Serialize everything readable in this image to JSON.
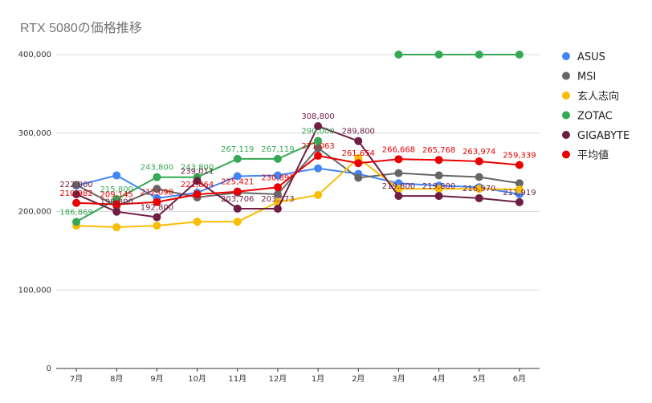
{
  "chart_data": {
    "type": "line",
    "title": "RTX 5080の価格推移",
    "categories": [
      "7月",
      "8月",
      "9月",
      "10月",
      "11月",
      "12月",
      "1月",
      "2月",
      "3月",
      "4月",
      "5月",
      "6月"
    ],
    "yticks": [
      "0",
      "100,000",
      "200,000",
      "300,000",
      "400,000"
    ],
    "ylim": [
      0,
      400000
    ],
    "grid": true,
    "legend_position": "right",
    "series": [
      {
        "name": "ASUS",
        "color": "#4285f4",
        "values": [
          233000,
          246000,
          217000,
          224000,
          245000,
          246000,
          255000,
          248000,
          236000,
          233000,
          231000,
          222000
        ],
        "labels": []
      },
      {
        "name": "MSI",
        "color": "#666666",
        "values": [
          234000,
          207000,
          229000,
          218000,
          224000,
          222000,
          281000,
          243000,
          249000,
          246000,
          244000,
          236000
        ],
        "labels": []
      },
      {
        "name": "玄人志向",
        "color": "#fbbc04",
        "values": [
          182000,
          180000,
          182000,
          187000,
          187000,
          212000,
          221000,
          268000,
          229000,
          229000,
          229000,
          228000
        ],
        "labels": []
      },
      {
        "name": "ZOTAC",
        "color": "#34a853",
        "values": [
          186869,
          215800,
          243800,
          243800,
          267119,
          267119,
          290000,
          null,
          400000,
          400000,
          400000,
          400000
        ],
        "labels": [
          "186,869",
          "215,800",
          "243,800",
          "243,800",
          "267,119",
          "267,119",
          "290,000",
          "",
          "",
          "",
          "",
          ""
        ]
      },
      {
        "name": "GIGABYTE",
        "color": "#6e1d43",
        "values": [
          222000,
          199800,
          192800,
          239011,
          203706,
          203573,
          308800,
          289800,
          219800,
          219800,
          216970,
          211919
        ],
        "labels": [
          "222,000",
          "199,800",
          "192,800",
          "239,011",
          "203,706",
          "203,573",
          "308,800",
          "289,800",
          "219,800",
          "219,800",
          "216,970",
          "211,919"
        ]
      },
      {
        "name": "平均値",
        "color": "#ea0000",
        "values": [
          210982,
          209145,
          212098,
          221864,
          225421,
          230897,
          271063,
          261654,
          266668,
          265768,
          263974,
          259339
        ],
        "labels": [
          "210,982",
          "209,145",
          "212,098",
          "221,864",
          "225,421",
          "230,897",
          "271,063",
          "261,654",
          "266,668",
          "265,768",
          "263,974",
          "259,339"
        ]
      }
    ]
  }
}
